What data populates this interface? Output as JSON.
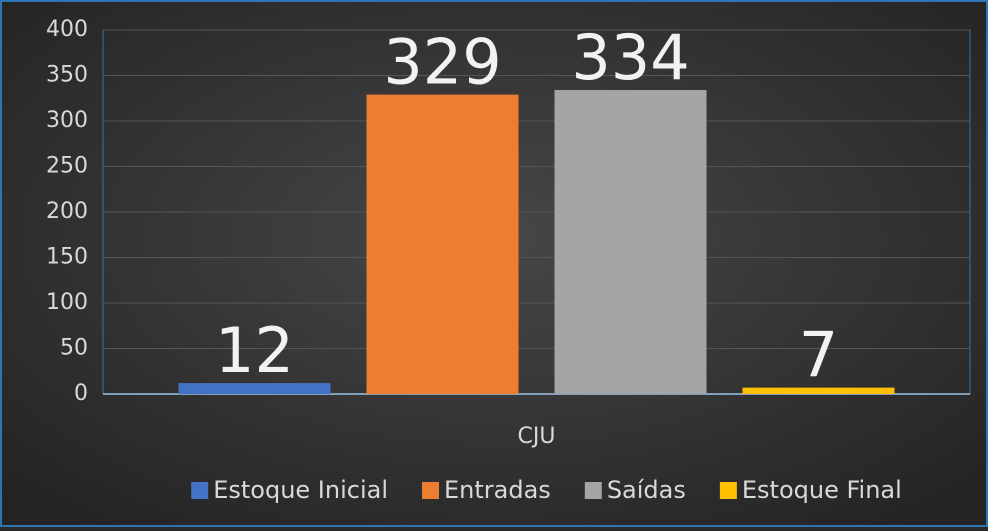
{
  "chart_data": {
    "type": "bar",
    "categories": [
      "CJU"
    ],
    "series": [
      {
        "name": "Estoque Inicial",
        "color": "#4472c4",
        "values": [
          12
        ]
      },
      {
        "name": "Entradas",
        "color": "#ed7d31",
        "values": [
          329
        ]
      },
      {
        "name": "Saídas",
        "color": "#a5a5a5",
        "values": [
          334
        ]
      },
      {
        "name": "Estoque Final",
        "color": "#ffc000",
        "values": [
          7
        ]
      }
    ],
    "ylim": [
      0,
      400
    ],
    "yticks": [
      0,
      50,
      100,
      150,
      200,
      250,
      300,
      350,
      400
    ],
    "grid": true,
    "legend": "bottom"
  }
}
